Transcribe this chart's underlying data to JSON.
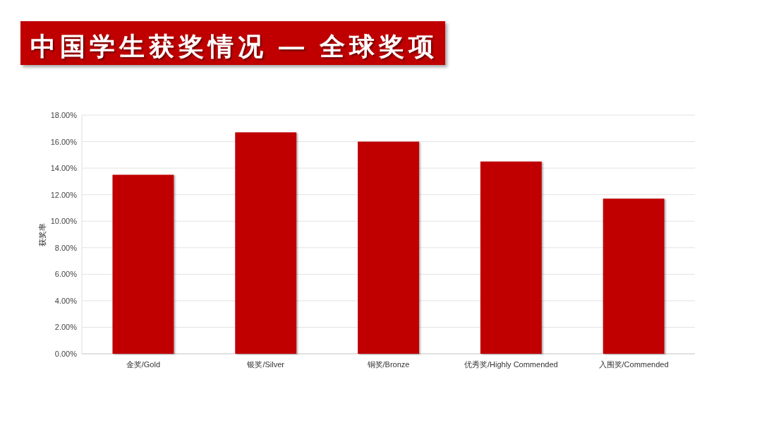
{
  "chart_data": {
    "type": "bar",
    "title": "中国学生获奖情况 — 全球奖项",
    "ylabel": "获奖率",
    "categories": [
      "金奖/Gold",
      "银奖/Silver",
      "铜奖/Bronze",
      "优秀奖/Highly Commended",
      "入围奖/Commended"
    ],
    "series": [
      {
        "color": "#c00000",
        "values": [
          13.5,
          16.7,
          16.0,
          14.5,
          11.7
        ]
      }
    ],
    "ylim": [
      0,
      18
    ],
    "yticks": [
      {
        "value": 0,
        "label": "0.00%"
      },
      {
        "value": 2,
        "label": "2.00%"
      },
      {
        "value": 4,
        "label": "4.00%"
      },
      {
        "value": 6,
        "label": "6.00%"
      },
      {
        "value": 8,
        "label": "8.00%"
      },
      {
        "value": 10,
        "label": "10.00%"
      },
      {
        "value": 12,
        "label": "12.00%"
      },
      {
        "value": 14,
        "label": "14.00%"
      },
      {
        "value": 16,
        "label": "16.00%"
      },
      {
        "value": 18,
        "label": "18.00%"
      }
    ],
    "grid": "y"
  }
}
